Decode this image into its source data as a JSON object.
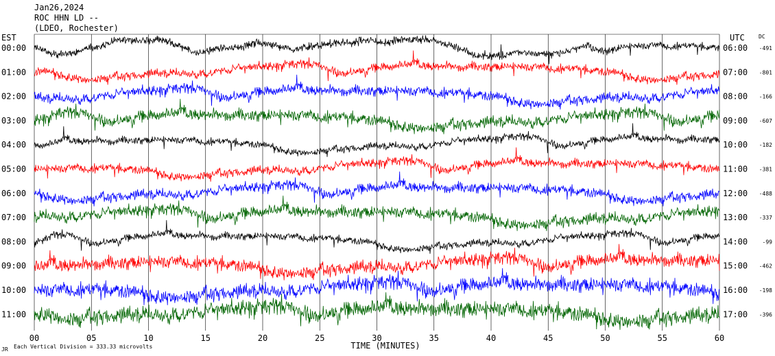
{
  "header": {
    "date": "Jan26,2024",
    "station": "ROC HHN LD --",
    "source": "(LDEO, Rochester)"
  },
  "chart_data": {
    "type": "line",
    "title": "",
    "left_axis_label": "EST",
    "right_axis_label": "UTC",
    "dc_label": "DC",
    "xlabel": "TIME (MINUTES)",
    "x_ticks": [
      "00",
      "05",
      "10",
      "15",
      "20",
      "25",
      "30",
      "35",
      "40",
      "45",
      "50",
      "55",
      "60"
    ],
    "xlim": [
      0,
      60
    ],
    "grid": "vertical every 5 minutes",
    "footnote_mark": "JR",
    "footnote": "Each Vertical Division =  333.33 microvolts",
    "colors": {
      "black": "#000000",
      "red": "#ff0000",
      "blue": "#0000ff",
      "green": "#006400"
    },
    "traces": [
      {
        "est": "00:00",
        "utc": "06:00",
        "dc": "-491",
        "color": "#000000"
      },
      {
        "est": "01:00",
        "utc": "07:00",
        "dc": "-801",
        "color": "#ff0000"
      },
      {
        "est": "02:00",
        "utc": "08:00",
        "dc": "-166",
        "color": "#0000ff"
      },
      {
        "est": "03:00",
        "utc": "09:00",
        "dc": "-607",
        "color": "#006400"
      },
      {
        "est": "04:00",
        "utc": "10:00",
        "dc": "-182",
        "color": "#000000"
      },
      {
        "est": "05:00",
        "utc": "11:00",
        "dc": "-381",
        "color": "#ff0000"
      },
      {
        "est": "06:00",
        "utc": "12:00",
        "dc": "-488",
        "color": "#0000ff"
      },
      {
        "est": "07:00",
        "utc": "13:00",
        "dc": "-337",
        "color": "#006400"
      },
      {
        "est": "08:00",
        "utc": "14:00",
        "dc": "-99",
        "color": "#000000"
      },
      {
        "est": "09:00",
        "utc": "15:00",
        "dc": "-462",
        "color": "#ff0000"
      },
      {
        "est": "10:00",
        "utc": "16:00",
        "dc": "-198",
        "color": "#0000ff"
      },
      {
        "est": "11:00",
        "utc": "17:00",
        "dc": "-396",
        "color": "#006400"
      }
    ]
  }
}
